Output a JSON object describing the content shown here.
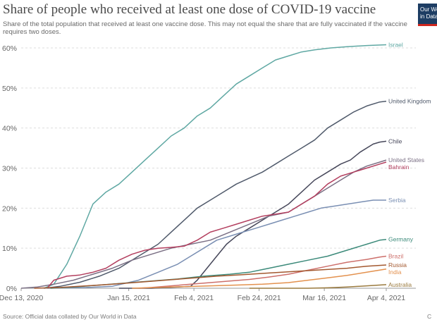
{
  "header": {
    "title": "Share of people who received at least one dose of COVID-19 vaccine",
    "subtitle": "Share of the total population that received at least one vaccine dose. This may not equal the share that are fully vaccinated if the vaccine requires two doses.",
    "logo_line1": "Our World",
    "logo_line2": "in Data"
  },
  "footer": {
    "source": "Source: Official data collated by Our World in Data",
    "license": "C"
  },
  "chart_data": {
    "type": "line",
    "title": "Share of people who received at least one dose of COVID-19 vaccine",
    "xlabel": "",
    "ylabel": "",
    "x_range": [
      0,
      112
    ],
    "ylim": [
      0,
      60
    ],
    "yticks": [
      {
        "value": 0,
        "label": "0%"
      },
      {
        "value": 10,
        "label": "10%"
      },
      {
        "value": 20,
        "label": "20%"
      },
      {
        "value": 30,
        "label": "30%"
      },
      {
        "value": 40,
        "label": "40%"
      },
      {
        "value": 50,
        "label": "50%"
      },
      {
        "value": 60,
        "label": "60%"
      }
    ],
    "xticks": [
      {
        "day": 0,
        "label": "Dec 13, 2020"
      },
      {
        "day": 33,
        "label": "Jan 15, 2021"
      },
      {
        "day": 53,
        "label": "Feb 4, 2021"
      },
      {
        "day": 73,
        "label": "Feb 24, 2021"
      },
      {
        "day": 93,
        "label": "Mar 16, 2021"
      },
      {
        "day": 112,
        "label": "Apr 4, 2021"
      }
    ],
    "grid": true,
    "x_unit": "days since Dec 13, 2020",
    "series": [
      {
        "name": "Israel",
        "color": "#5fa8a3",
        "points": [
          [
            7,
            0
          ],
          [
            10,
            1
          ],
          [
            14,
            6
          ],
          [
            18,
            13
          ],
          [
            22,
            21
          ],
          [
            26,
            24
          ],
          [
            30,
            26
          ],
          [
            34,
            29
          ],
          [
            38,
            32
          ],
          [
            42,
            35
          ],
          [
            46,
            38
          ],
          [
            50,
            40
          ],
          [
            54,
            43
          ],
          [
            58,
            45
          ],
          [
            62,
            48
          ],
          [
            66,
            51
          ],
          [
            70,
            53
          ],
          [
            74,
            55
          ],
          [
            78,
            57
          ],
          [
            82,
            58
          ],
          [
            86,
            59
          ],
          [
            90,
            59.5
          ],
          [
            95,
            60
          ],
          [
            100,
            60.3
          ],
          [
            106,
            60.6
          ],
          [
            112,
            60.8
          ]
        ]
      },
      {
        "name": "United Kingdom",
        "color": "#505a6b",
        "points": [
          [
            7,
            0
          ],
          [
            12,
            0.5
          ],
          [
            18,
            1.5
          ],
          [
            24,
            3
          ],
          [
            30,
            5
          ],
          [
            36,
            8
          ],
          [
            42,
            11
          ],
          [
            46,
            14
          ],
          [
            50,
            17
          ],
          [
            54,
            20
          ],
          [
            58,
            22
          ],
          [
            62,
            24
          ],
          [
            66,
            26
          ],
          [
            70,
            27.5
          ],
          [
            74,
            29
          ],
          [
            78,
            31
          ],
          [
            82,
            33
          ],
          [
            86,
            35
          ],
          [
            90,
            37
          ],
          [
            94,
            40
          ],
          [
            98,
            42
          ],
          [
            102,
            44
          ],
          [
            106,
            45.5
          ],
          [
            110,
            46.5
          ],
          [
            112,
            46.7
          ]
        ]
      },
      {
        "name": "Chile",
        "color": "#46475a",
        "points": [
          [
            30,
            0
          ],
          [
            40,
            0
          ],
          [
            48,
            0.3
          ],
          [
            52,
            0.5
          ],
          [
            54,
            2
          ],
          [
            57,
            5
          ],
          [
            60,
            8
          ],
          [
            63,
            11
          ],
          [
            66,
            13
          ],
          [
            70,
            15
          ],
          [
            74,
            17
          ],
          [
            78,
            19
          ],
          [
            82,
            21
          ],
          [
            86,
            24
          ],
          [
            90,
            27
          ],
          [
            94,
            29
          ],
          [
            98,
            31
          ],
          [
            101,
            32
          ],
          [
            104,
            34
          ],
          [
            108,
            36
          ],
          [
            110,
            36.5
          ],
          [
            112,
            36.7
          ]
        ]
      },
      {
        "name": "United States",
        "color": "#7b7085",
        "points": [
          [
            0,
            0
          ],
          [
            5,
            0.3
          ],
          [
            10,
            1
          ],
          [
            16,
            2
          ],
          [
            22,
            3.5
          ],
          [
            28,
            5
          ],
          [
            34,
            7
          ],
          [
            40,
            8.5
          ],
          [
            46,
            10
          ],
          [
            52,
            11
          ],
          [
            58,
            12
          ],
          [
            64,
            14
          ],
          [
            70,
            16
          ],
          [
            76,
            18
          ],
          [
            82,
            19
          ],
          [
            86,
            21
          ],
          [
            90,
            23
          ],
          [
            94,
            25
          ],
          [
            98,
            27
          ],
          [
            102,
            29
          ],
          [
            106,
            30.5
          ],
          [
            110,
            31.5
          ],
          [
            112,
            32
          ]
        ]
      },
      {
        "name": "Bahrain",
        "color": "#b33f5f",
        "points": [
          [
            8,
            0
          ],
          [
            10,
            2
          ],
          [
            14,
            3
          ],
          [
            18,
            3.3
          ],
          [
            22,
            4
          ],
          [
            26,
            5
          ],
          [
            30,
            7
          ],
          [
            34,
            8.5
          ],
          [
            38,
            9.5
          ],
          [
            42,
            10
          ],
          [
            46,
            10.2
          ],
          [
            50,
            10.5
          ],
          [
            54,
            12
          ],
          [
            58,
            14
          ],
          [
            62,
            15
          ],
          [
            66,
            16
          ],
          [
            70,
            17
          ],
          [
            74,
            18
          ],
          [
            78,
            18.5
          ],
          [
            82,
            19
          ],
          [
            86,
            21
          ],
          [
            90,
            23
          ],
          [
            94,
            26
          ],
          [
            98,
            28
          ],
          [
            102,
            29
          ],
          [
            106,
            30
          ],
          [
            110,
            31
          ],
          [
            112,
            31.5
          ]
        ]
      },
      {
        "name": "Serbia",
        "color": "#7a8fb3",
        "points": [
          [
            8,
            0
          ],
          [
            20,
            0.2
          ],
          [
            28,
            0.5
          ],
          [
            36,
            2
          ],
          [
            42,
            4
          ],
          [
            48,
            6
          ],
          [
            52,
            8
          ],
          [
            56,
            10
          ],
          [
            60,
            12
          ],
          [
            64,
            13
          ],
          [
            68,
            14
          ],
          [
            72,
            15
          ],
          [
            76,
            16
          ],
          [
            80,
            17
          ],
          [
            84,
            18
          ],
          [
            88,
            19
          ],
          [
            92,
            20
          ],
          [
            96,
            20.5
          ],
          [
            100,
            21
          ],
          [
            104,
            21.5
          ],
          [
            108,
            22
          ],
          [
            112,
            22
          ]
        ]
      },
      {
        "name": "Germany",
        "color": "#3c8a7a",
        "points": [
          [
            9,
            0
          ],
          [
            16,
            0.3
          ],
          [
            24,
            0.8
          ],
          [
            32,
            1.3
          ],
          [
            40,
            1.8
          ],
          [
            48,
            2.3
          ],
          [
            56,
            3
          ],
          [
            64,
            3.5
          ],
          [
            70,
            4
          ],
          [
            76,
            5
          ],
          [
            82,
            6
          ],
          [
            88,
            7
          ],
          [
            94,
            8
          ],
          [
            100,
            9.5
          ],
          [
            106,
            11
          ],
          [
            110,
            12
          ],
          [
            112,
            12.2
          ]
        ]
      },
      {
        "name": "Brazil",
        "color": "#cd6f6b",
        "points": [
          [
            36,
            0
          ],
          [
            40,
            0.2
          ],
          [
            46,
            0.6
          ],
          [
            52,
            1
          ],
          [
            58,
            1.4
          ],
          [
            64,
            1.8
          ],
          [
            70,
            2.2
          ],
          [
            76,
            2.8
          ],
          [
            82,
            3.5
          ],
          [
            88,
            4.5
          ],
          [
            94,
            5.5
          ],
          [
            100,
            6.5
          ],
          [
            106,
            7.2
          ],
          [
            110,
            7.8
          ],
          [
            112,
            8
          ]
        ]
      },
      {
        "name": "Russia",
        "color": "#a3582f",
        "points": [
          [
            4,
            0
          ],
          [
            12,
            0.2
          ],
          [
            20,
            0.6
          ],
          [
            28,
            1
          ],
          [
            36,
            1.5
          ],
          [
            44,
            2
          ],
          [
            52,
            2.5
          ],
          [
            60,
            3
          ],
          [
            68,
            3.4
          ],
          [
            76,
            3.8
          ],
          [
            84,
            4.2
          ],
          [
            92,
            4.6
          ],
          [
            100,
            5
          ],
          [
            106,
            5.5
          ],
          [
            112,
            5.8
          ]
        ]
      },
      {
        "name": "India",
        "color": "#e3914e",
        "points": [
          [
            34,
            0
          ],
          [
            42,
            0.2
          ],
          [
            50,
            0.4
          ],
          [
            58,
            0.6
          ],
          [
            66,
            0.8
          ],
          [
            74,
            1
          ],
          [
            82,
            1.4
          ],
          [
            88,
            2
          ],
          [
            94,
            2.6
          ],
          [
            100,
            3.2
          ],
          [
            106,
            4
          ],
          [
            112,
            4.8
          ]
        ]
      },
      {
        "name": "Australia",
        "color": "#9a7a3e",
        "points": [
          [
            70,
            0
          ],
          [
            80,
            0
          ],
          [
            88,
            0
          ],
          [
            94,
            0.1
          ],
          [
            100,
            0.3
          ],
          [
            106,
            0.6
          ],
          [
            112,
            0.9
          ]
        ]
      }
    ]
  }
}
